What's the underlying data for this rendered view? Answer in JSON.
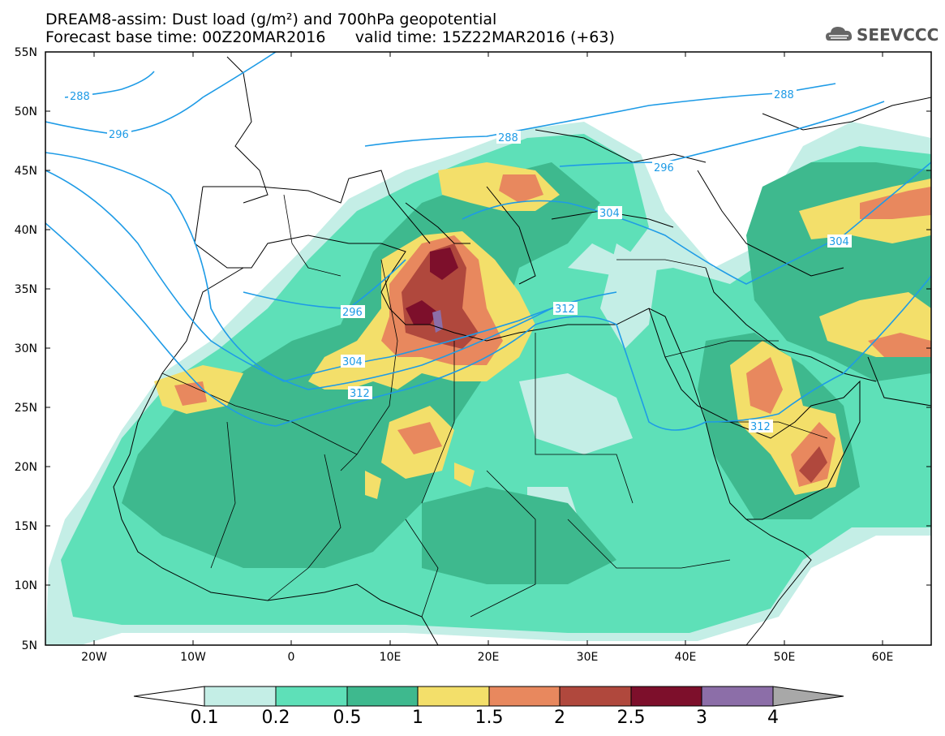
{
  "header": {
    "title_line1": "DREAM8-assim: Dust load (g/m²) and 700hPa geopotential",
    "title_line2": "Forecast base time: 00Z20MAR2016      valid time: 15Z22MAR2016 (+63)",
    "logo_text": "SEEVCCC"
  },
  "axes": {
    "lat_labels": [
      "55N",
      "50N",
      "45N",
      "40N",
      "35N",
      "30N",
      "25N",
      "20N",
      "15N",
      "10N",
      "5N"
    ],
    "lon_labels": [
      "20W",
      "10W",
      "0",
      "10E",
      "20E",
      "30E",
      "40E",
      "50E",
      "60E"
    ]
  },
  "contours": {
    "labels": [
      "288",
      "296",
      "288",
      "288",
      "296",
      "304",
      "296",
      "304",
      "312",
      "312",
      "304",
      "312"
    ],
    "line_color": "#1e9be6"
  },
  "colorbar": {
    "levels": [
      "0.1",
      "0.2",
      "0.5",
      "1",
      "1.5",
      "2",
      "2.5",
      "3",
      "4"
    ],
    "colors": [
      "#c4eee6",
      "#5ee0b8",
      "#3eb98e",
      "#f3df6a",
      "#e8885e",
      "#b0483d",
      "#7d0f2b",
      "#8c6ea8",
      "#a8a8a8"
    ]
  }
}
